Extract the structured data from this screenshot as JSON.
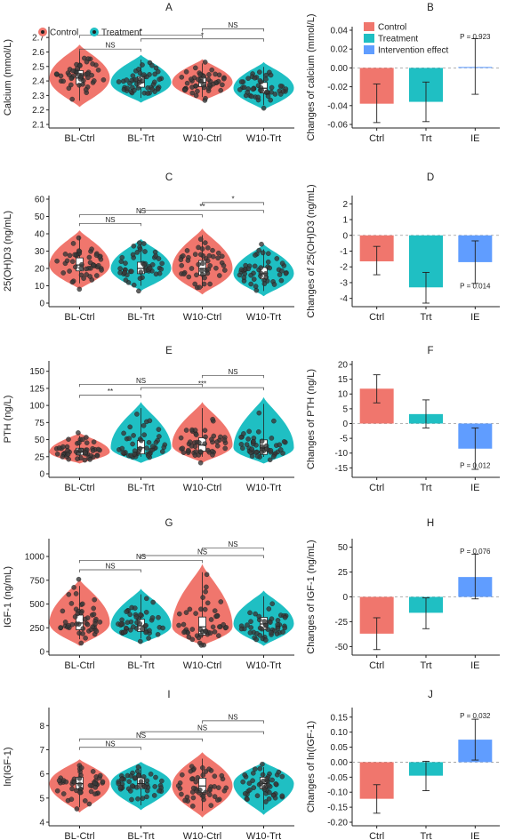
{
  "colors": {
    "control": "#F0766D",
    "treatment": "#1FBFC3",
    "intervention": "#609DFF",
    "points": "#3a3a3a"
  },
  "legend_violin": {
    "items": [
      "Control",
      "Treatment"
    ]
  },
  "legend_bar": {
    "items": [
      "Control",
      "Treatment",
      "Intervention effect"
    ]
  },
  "chart_data": [
    {
      "panel": "A",
      "type": "violin",
      "ylabel": "Calcium (mmol/L)",
      "categories": [
        "BL-Ctrl",
        "BL-Trt",
        "W10-Ctrl",
        "W10-Trt"
      ],
      "groups": [
        "Control",
        "Treatment",
        "Control",
        "Treatment"
      ],
      "ylim": [
        2.1,
        2.75
      ],
      "yticks": [
        2.1,
        2.2,
        2.3,
        2.4,
        2.5,
        2.6,
        2.7
      ],
      "ytick_labels": [
        "2.1",
        "2.2",
        "2.3",
        "2.4",
        "2.5",
        "2.6",
        "2.7"
      ],
      "medians": [
        2.42,
        2.39,
        2.39,
        2.35
      ],
      "ranges": [
        [
          2.22,
          2.65
        ],
        [
          2.25,
          2.58
        ],
        [
          2.26,
          2.55
        ],
        [
          2.2,
          2.53
        ]
      ],
      "comparisons": [
        {
          "from": 0,
          "to": 1,
          "y": 2.62,
          "label": "NS"
        },
        {
          "from": 1,
          "to": 3,
          "y": 2.69,
          "label": "*"
        },
        {
          "from": 0,
          "to": 2,
          "y": 2.715,
          "label": "*"
        },
        {
          "from": 2,
          "to": 3,
          "y": 2.76,
          "label": "NS"
        }
      ]
    },
    {
      "panel": "B",
      "type": "bar",
      "ylabel": "Changes of calcium (mmol/L)",
      "categories": [
        "Ctrl",
        "Trt",
        "IE"
      ],
      "values": [
        -0.038,
        -0.036,
        0.001
      ],
      "ci": [
        [
          -0.058,
          -0.017
        ],
        [
          -0.057,
          -0.015
        ],
        [
          -0.028,
          0.031
        ]
      ],
      "ylim": [
        -0.06,
        0.04
      ],
      "yticks": [
        -0.06,
        -0.04,
        -0.02,
        0,
        0.02,
        0.04
      ],
      "ytick_labels": [
        "-0.06",
        "-0.04",
        "-0.02",
        "0.00",
        "0.02",
        "0.04"
      ],
      "annotation": {
        "text": "P = 0.923",
        "x": 2,
        "y": 0.0335
      }
    },
    {
      "panel": "C",
      "type": "violin",
      "ylabel": "25(OH)D3 (ng/mL)",
      "categories": [
        "BL-Ctrl",
        "BL-Trt",
        "W10-Ctrl",
        "W10-Trt"
      ],
      "groups": [
        "Control",
        "Treatment",
        "Control",
        "Treatment"
      ],
      "ylim": [
        0,
        60
      ],
      "yticks": [
        0,
        10,
        20,
        30,
        40,
        50,
        60
      ],
      "ytick_labels": [
        "0",
        "10",
        "20",
        "30",
        "40",
        "50",
        "60"
      ],
      "medians": [
        22,
        20,
        20,
        17
      ],
      "ranges": [
        [
          8,
          42
        ],
        [
          7,
          37
        ],
        [
          5,
          43
        ],
        [
          4,
          34
        ]
      ],
      "comparisons": [
        {
          "from": 0,
          "to": 1,
          "y": 46,
          "label": "NS"
        },
        {
          "from": 0,
          "to": 2,
          "y": 51,
          "label": "NS"
        },
        {
          "from": 1,
          "to": 3,
          "y": 53.5,
          "label": "**"
        },
        {
          "from": 2,
          "to": 3,
          "y": 58,
          "label": "*"
        }
      ]
    },
    {
      "panel": "D",
      "type": "bar",
      "ylabel": "Changes of 25(OH)D3 (ng/mL)",
      "categories": [
        "Ctrl",
        "Trt",
        "IE"
      ],
      "values": [
        -1.65,
        -3.3,
        -1.7
      ],
      "ci": [
        [
          -2.5,
          -0.7
        ],
        [
          -4.3,
          -2.35
        ],
        [
          -3.05,
          -0.35
        ]
      ],
      "ylim": [
        -4.3,
        2.3
      ],
      "yticks": [
        -4,
        -3,
        -2,
        -1,
        0,
        1,
        2
      ],
      "ytick_labels": [
        "-4",
        "-3",
        "-2",
        "-1",
        "0",
        "1",
        "2"
      ],
      "annotation": {
        "text": "P = 0.014",
        "x": 2,
        "y": -3.2
      }
    },
    {
      "panel": "E",
      "type": "violin",
      "ylabel": "PTH (ng/L)",
      "categories": [
        "BL-Ctrl",
        "BL-Trt",
        "W10-Ctrl",
        "W10-Trt"
      ],
      "groups": [
        "Control",
        "Treatment",
        "Control",
        "Treatment"
      ],
      "ylim": [
        0,
        160
      ],
      "yticks": [
        0,
        25,
        50,
        75,
        100,
        125,
        150
      ],
      "ytick_labels": [
        "0",
        "25",
        "50",
        "75",
        "100",
        "125",
        "150"
      ],
      "medians": [
        32,
        38,
        42,
        38
      ],
      "ranges": [
        [
          15,
          60
        ],
        [
          16,
          105
        ],
        [
          16,
          105
        ],
        [
          15,
          112
        ]
      ],
      "comparisons": [
        {
          "from": 0,
          "to": 1,
          "y": 115,
          "label": "**"
        },
        {
          "from": 1,
          "to": 3,
          "y": 126,
          "label": "***"
        },
        {
          "from": 0,
          "to": 2,
          "y": 131,
          "label": "NS"
        },
        {
          "from": 2,
          "to": 3,
          "y": 144,
          "label": "NS"
        }
      ]
    },
    {
      "panel": "F",
      "type": "bar",
      "ylabel": "Changes of PTH (ng/L)",
      "categories": [
        "Ctrl",
        "Trt",
        "IE"
      ],
      "values": [
        11.8,
        3.2,
        -8.5
      ],
      "ci": [
        [
          7,
          16.5
        ],
        [
          -1.5,
          8
        ],
        [
          -15.5,
          -1.5
        ]
      ],
      "ylim": [
        -17,
        20
      ],
      "yticks": [
        -15,
        -10,
        -5,
        0,
        5,
        10,
        15,
        20
      ],
      "ytick_labels": [
        "-15",
        "-10",
        "-5",
        "0",
        "5",
        "10",
        "15",
        "20"
      ],
      "annotation": {
        "text": "P = 0.012",
        "x": 2,
        "y": -14.2
      }
    },
    {
      "panel": "G",
      "type": "violin",
      "ylabel": "IGF-1 (ng/mL)",
      "categories": [
        "BL-Ctrl",
        "BL-Trt",
        "W10-Ctrl",
        "W10-Trt"
      ],
      "groups": [
        "Control",
        "Treatment",
        "Control",
        "Treatment"
      ],
      "ylim": [
        0,
        1150
      ],
      "yticks": [
        0,
        250,
        500,
        750,
        1000
      ],
      "ytick_labels": [
        "0",
        "250",
        "500",
        "750",
        "1000"
      ],
      "medians": [
        300,
        270,
        260,
        290
      ],
      "ranges": [
        [
          60,
          760
        ],
        [
          80,
          660
        ],
        [
          60,
          920
        ],
        [
          60,
          640
        ]
      ],
      "comparisons": [
        {
          "from": 0,
          "to": 1,
          "y": 860,
          "label": "NS"
        },
        {
          "from": 0,
          "to": 2,
          "y": 960,
          "label": "NS"
        },
        {
          "from": 1,
          "to": 3,
          "y": 1010,
          "label": "NS"
        },
        {
          "from": 2,
          "to": 3,
          "y": 1090,
          "label": "NS"
        }
      ]
    },
    {
      "panel": "H",
      "type": "bar",
      "ylabel": "Changes of IGF-1 (ng/mL)",
      "categories": [
        "Ctrl",
        "Trt",
        "IE"
      ],
      "values": [
        -37,
        -16,
        20
      ],
      "ci": [
        [
          -53,
          -21
        ],
        [
          -32,
          -1
        ],
        [
          -2,
          43
        ]
      ],
      "ylim": [
        -55,
        55
      ],
      "yticks": [
        -50,
        -25,
        0,
        25,
        50
      ],
      "ytick_labels": [
        "-50",
        "-25",
        "0",
        "25",
        "50"
      ],
      "annotation": {
        "text": "P = 0.076",
        "x": 2,
        "y": 46
      }
    },
    {
      "panel": "I",
      "type": "violin",
      "ylabel": "ln(IGF-1)",
      "categories": [
        "BL-Ctrl",
        "BL-Trt",
        "W10-Ctrl",
        "W10-Trt"
      ],
      "groups": [
        "Control",
        "Treatment",
        "Control",
        "Treatment"
      ],
      "ylim": [
        4,
        8.6
      ],
      "yticks": [
        4,
        5,
        6,
        7,
        8
      ],
      "ytick_labels": [
        "4",
        "5",
        "6",
        "7",
        "8"
      ],
      "medians": [
        5.6,
        5.6,
        5.5,
        5.6
      ],
      "ranges": [
        [
          4.4,
          6.6
        ],
        [
          4.5,
          6.5
        ],
        [
          4.2,
          6.9
        ],
        [
          4.3,
          6.5
        ]
      ],
      "comparisons": [
        {
          "from": 0,
          "to": 1,
          "y": 7.1,
          "label": "NS"
        },
        {
          "from": 0,
          "to": 2,
          "y": 7.45,
          "label": "NS"
        },
        {
          "from": 1,
          "to": 3,
          "y": 7.75,
          "label": "NS"
        },
        {
          "from": 2,
          "to": 3,
          "y": 8.2,
          "label": "NS"
        }
      ]
    },
    {
      "panel": "J",
      "type": "bar",
      "ylabel": "Changes of ln(IGF-1)",
      "categories": [
        "Ctrl",
        "Trt",
        "IE"
      ],
      "values": [
        -0.122,
        -0.045,
        0.075
      ],
      "ci": [
        [
          -0.17,
          -0.075
        ],
        [
          -0.095,
          0.003
        ],
        [
          0.007,
          0.143
        ]
      ],
      "ylim": [
        -0.2,
        0.17
      ],
      "yticks": [
        -0.2,
        -0.15,
        -0.1,
        -0.05,
        0,
        0.05,
        0.1,
        0.15
      ],
      "ytick_labels": [
        "-0.20",
        "-0.15",
        "-0.10",
        "-0.05",
        "0.00",
        "0.05",
        "0.10",
        "0.15"
      ],
      "annotation": {
        "text": "P = 0.032",
        "x": 2,
        "y": 0.155
      }
    }
  ]
}
